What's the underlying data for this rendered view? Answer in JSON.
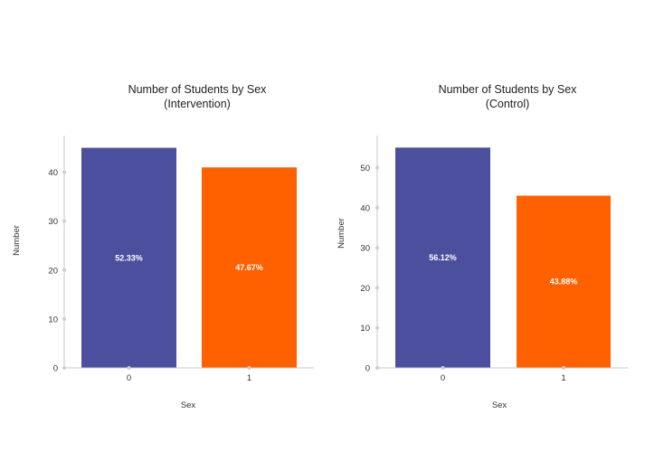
{
  "colors": {
    "group_0": "#4b4f9e",
    "group_1": "#ff6100"
  },
  "chart_data": [
    {
      "type": "bar",
      "title_line1": "Number of Students by Sex",
      "title_line2": "(Intervention)",
      "xlabel": "Sex",
      "ylabel": "Number",
      "categories": [
        "0",
        "1"
      ],
      "values": [
        45,
        41
      ],
      "data_labels": [
        "52.33%",
        "47.67%"
      ],
      "y_ticks": [
        0,
        10,
        20,
        30,
        40
      ],
      "ylim": [
        0,
        47.5
      ],
      "grid": false
    },
    {
      "type": "bar",
      "title_line1": "Number of Students by Sex",
      "title_line2": "(Control)",
      "xlabel": "Sex",
      "ylabel": "Number",
      "categories": [
        "0",
        "1"
      ],
      "values": [
        55,
        43
      ],
      "data_labels": [
        "56.12%",
        "43.88%"
      ],
      "y_ticks": [
        0,
        10,
        20,
        30,
        40,
        50
      ],
      "ylim": [
        0,
        58
      ],
      "grid": false
    }
  ]
}
